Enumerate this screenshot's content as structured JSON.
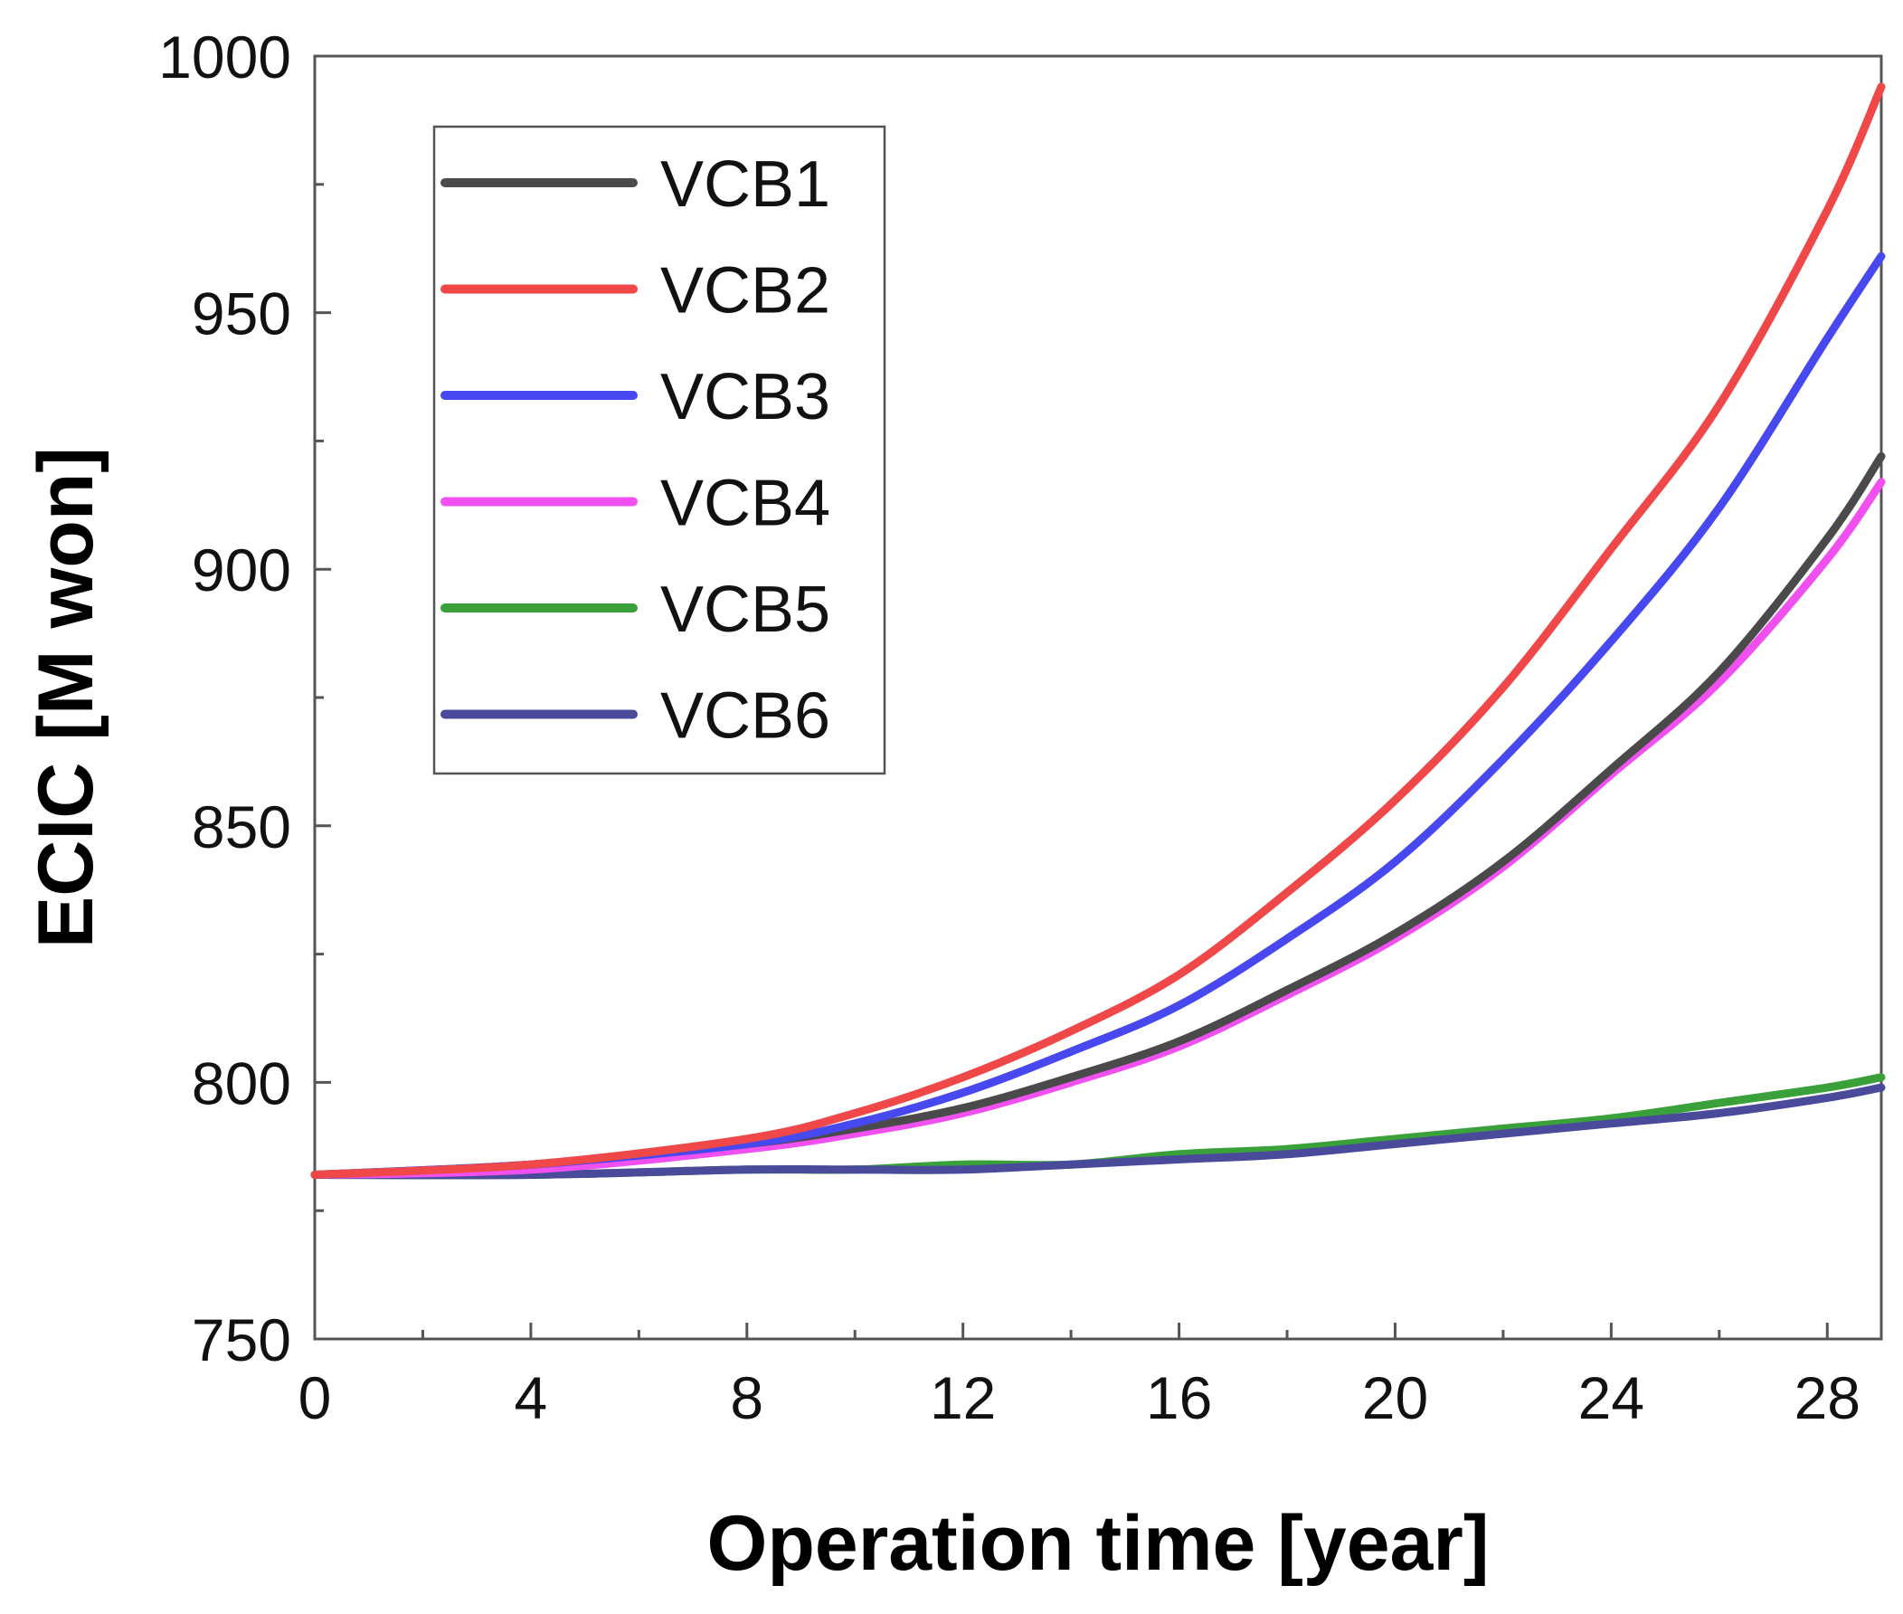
{
  "chart_data": {
    "type": "line",
    "title": "",
    "xlabel": "Operation time [year]",
    "ylabel": "ECIC [M won]",
    "xlim": [
      0,
      29
    ],
    "ylim": [
      750,
      1000
    ],
    "xticks": [
      0,
      4,
      8,
      12,
      16,
      20,
      24,
      28
    ],
    "yticks": [
      750,
      800,
      850,
      900,
      950,
      1000
    ],
    "grid": false,
    "legend_position": "top-left",
    "x": [
      0,
      4,
      8,
      10,
      12,
      14,
      16,
      18,
      20,
      22,
      24,
      26,
      28,
      29
    ],
    "series": [
      {
        "name": "VCB1",
        "color": "#4a4a4a",
        "values": [
          782,
          784,
          788,
          791,
          795,
          801,
          808,
          818,
          829,
          843,
          861,
          880,
          906,
          922
        ]
      },
      {
        "name": "VCB2",
        "color": "#f04848",
        "values": [
          782,
          784,
          789,
          794,
          801,
          810,
          821,
          837,
          855,
          877,
          904,
          932,
          970,
          994
        ]
      },
      {
        "name": "VCB3",
        "color": "#4848f0",
        "values": [
          782,
          784,
          788,
          792,
          798,
          806,
          815,
          828,
          843,
          863,
          886,
          912,
          945,
          961
        ]
      },
      {
        "name": "VCB4",
        "color": "#f050f0",
        "values": [
          782,
          783,
          787,
          790,
          794,
          800,
          807,
          817,
          828,
          842,
          860,
          878,
          902,
          917
        ]
      },
      {
        "name": "VCB5",
        "color": "#3aa03a",
        "values": [
          782,
          782,
          783,
          783,
          784,
          784,
          786,
          787,
          789,
          791,
          793,
          796,
          799,
          801
        ]
      },
      {
        "name": "VCB6",
        "color": "#4a4a9a",
        "values": [
          782,
          782,
          783,
          783,
          783,
          784,
          785,
          786,
          788,
          790,
          792,
          794,
          797,
          799
        ]
      }
    ]
  }
}
